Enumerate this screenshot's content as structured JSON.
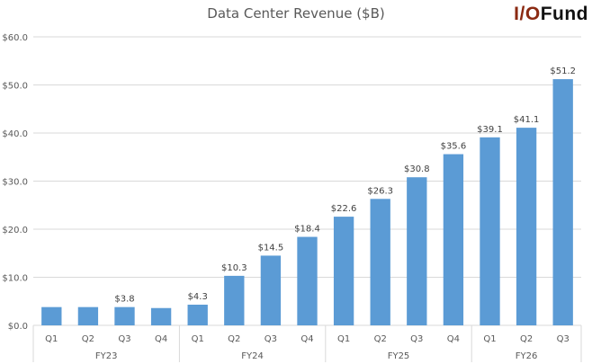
{
  "chart_data": {
    "type": "bar",
    "title": "Data Center Revenue ($B)",
    "xlabel": "",
    "ylabel": "",
    "ylim": [
      0,
      60
    ],
    "yticks": [
      "$0.0",
      "$10.0",
      "$20.0",
      "$30.0",
      "$40.0",
      "$50.0",
      "$60.0"
    ],
    "ytick_values": [
      0,
      10,
      20,
      30,
      40,
      50,
      60
    ],
    "grid": true,
    "legend": "none",
    "bar_color": "#5b9bd5",
    "groups": [
      {
        "name": "FY23",
        "quarters": [
          "Q1",
          "Q2",
          "Q3",
          "Q4"
        ]
      },
      {
        "name": "FY24",
        "quarters": [
          "Q1",
          "Q2",
          "Q3",
          "Q4"
        ]
      },
      {
        "name": "FY25",
        "quarters": [
          "Q1",
          "Q2",
          "Q3",
          "Q4"
        ]
      },
      {
        "name": "FY26",
        "quarters": [
          "Q1",
          "Q2",
          "Q3"
        ]
      }
    ],
    "categories": [
      "FY23 Q1",
      "FY23 Q2",
      "FY23 Q3",
      "FY23 Q4",
      "FY24 Q1",
      "FY24 Q2",
      "FY24 Q3",
      "FY24 Q4",
      "FY25 Q1",
      "FY25 Q2",
      "FY25 Q3",
      "FY25 Q4",
      "FY26 Q1",
      "FY26 Q2",
      "FY26 Q3"
    ],
    "values": [
      3.8,
      3.8,
      3.8,
      3.6,
      4.3,
      10.3,
      14.5,
      18.4,
      22.6,
      26.3,
      30.8,
      35.6,
      39.1,
      41.1,
      51.2
    ],
    "data_labels": [
      "",
      "",
      "$3.8",
      "",
      "$4.3",
      "$10.3",
      "$14.5",
      "$18.4",
      "$22.6",
      "$26.3",
      "$30.8",
      "$35.6",
      "$39.1",
      "$41.1",
      "$51.2"
    ]
  },
  "logo": {
    "part1": "I/O",
    "part2": "Fund"
  }
}
